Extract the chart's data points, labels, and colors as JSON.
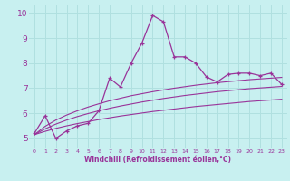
{
  "xlabel": "Windchill (Refroidissement éolien,°C)",
  "bg_color": "#c8f0f0",
  "grid_color": "#b0e0e0",
  "line_color": "#993399",
  "xlim": [
    -0.5,
    23.5
  ],
  "ylim": [
    4.6,
    10.3
  ],
  "yticks": [
    5,
    6,
    7,
    8,
    9,
    10
  ],
  "xticks": [
    0,
    1,
    2,
    3,
    4,
    5,
    6,
    7,
    8,
    9,
    10,
    11,
    12,
    13,
    14,
    15,
    16,
    17,
    18,
    19,
    20,
    21,
    22,
    23
  ],
  "main_x": [
    0,
    1,
    2,
    3,
    4,
    5,
    6,
    7,
    8,
    9,
    10,
    11,
    12,
    13,
    14,
    15,
    16,
    17,
    18,
    19,
    20,
    21,
    22,
    23
  ],
  "main_y": [
    5.2,
    5.9,
    5.0,
    5.3,
    5.5,
    5.6,
    6.1,
    7.4,
    7.05,
    8.0,
    8.8,
    9.9,
    9.65,
    8.25,
    8.25,
    8.0,
    7.45,
    7.25,
    7.55,
    7.6,
    7.6,
    7.5,
    7.6,
    7.15
  ],
  "curve1_x": [
    0,
    1,
    2,
    3,
    4,
    5,
    6,
    7,
    8,
    9,
    10,
    11,
    12,
    13,
    14,
    15,
    16,
    17,
    18,
    19,
    20,
    21,
    22,
    23
  ],
  "curve1_y": [
    5.15,
    5.28,
    5.4,
    5.5,
    5.59,
    5.67,
    5.75,
    5.82,
    5.89,
    5.95,
    6.01,
    6.07,
    6.12,
    6.17,
    6.22,
    6.27,
    6.31,
    6.35,
    6.39,
    6.43,
    6.47,
    6.5,
    6.53,
    6.56
  ],
  "curve2_x": [
    0,
    1,
    2,
    3,
    4,
    5,
    6,
    7,
    8,
    9,
    10,
    11,
    12,
    13,
    14,
    15,
    16,
    17,
    18,
    19,
    20,
    21,
    22,
    23
  ],
  "curve2_y": [
    5.15,
    5.38,
    5.57,
    5.73,
    5.87,
    5.99,
    6.1,
    6.2,
    6.29,
    6.37,
    6.45,
    6.52,
    6.59,
    6.65,
    6.71,
    6.76,
    6.81,
    6.86,
    6.9,
    6.94,
    6.98,
    7.01,
    7.04,
    7.07
  ],
  "curve3_x": [
    0,
    1,
    2,
    3,
    4,
    5,
    6,
    7,
    8,
    9,
    10,
    11,
    12,
    13,
    14,
    15,
    16,
    17,
    18,
    19,
    20,
    21,
    22,
    23
  ],
  "curve3_y": [
    5.15,
    5.48,
    5.73,
    5.93,
    6.1,
    6.25,
    6.38,
    6.5,
    6.6,
    6.7,
    6.78,
    6.86,
    6.93,
    7.0,
    7.06,
    7.12,
    7.17,
    7.22,
    7.26,
    7.3,
    7.34,
    7.37,
    7.4,
    7.43
  ]
}
